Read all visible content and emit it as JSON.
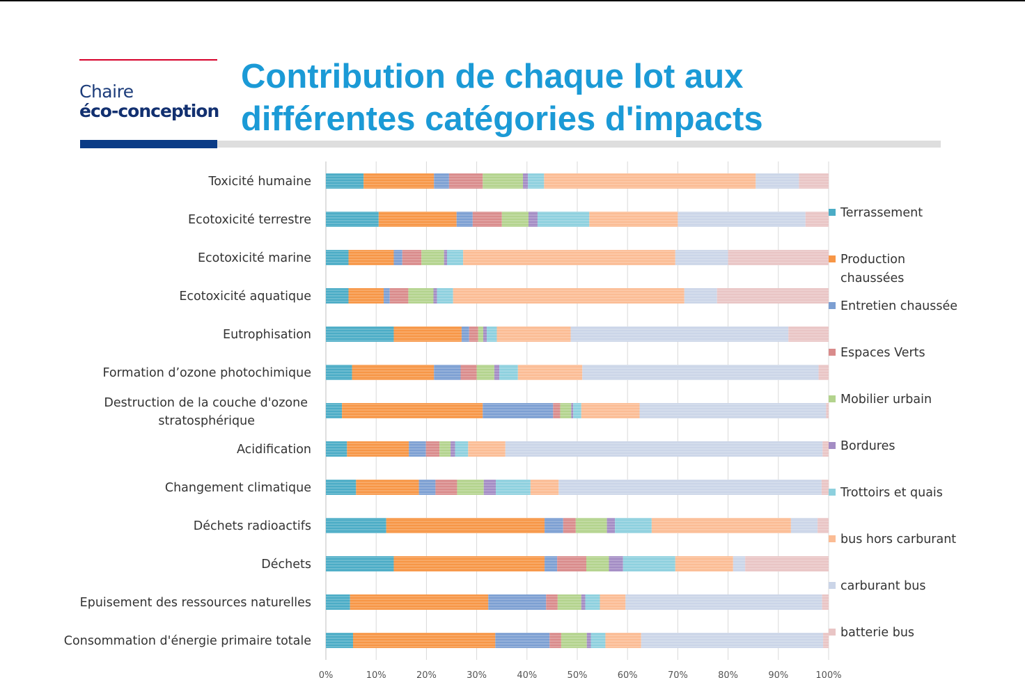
{
  "header": {
    "logo_line1": "Chaire",
    "logo_line2": "éco-conception",
    "title_line1": "Contribution de chaque lot aux",
    "title_line2": "différentes catégories d'impacts"
  },
  "chart_data": {
    "type": "bar",
    "orientation": "horizontal",
    "stacked": "percent",
    "xlim": [
      0,
      100
    ],
    "x_ticks": [
      "0%",
      "10%",
      "20%",
      "30%",
      "40%",
      "50%",
      "60%",
      "70%",
      "80%",
      "90%",
      "100%"
    ],
    "grid": true,
    "legend_position": "right",
    "categories": [
      "Toxicité humaine",
      "Ecotoxicité terrestre",
      "Ecotoxicité marine",
      "Ecotoxicité aquatique",
      "Eutrophisation",
      "Formation d’ozone photochimique",
      "Destruction de la couche d'ozone stratosphérique",
      "Acidification",
      "Changement climatique",
      "Déchets radioactifs",
      "Déchets",
      "Epuisement des ressources naturelles",
      "Consommation d'énergie primaire totale"
    ],
    "series": [
      {
        "name": "Terrassement",
        "color": "#4bacc6",
        "values": [
          7.5,
          10.5,
          4.5,
          4.5,
          13.5,
          5.2,
          3.2,
          4.2,
          6.0,
          12.0,
          13.5,
          4.8,
          5.4
        ]
      },
      {
        "name": "Production chaussées",
        "color": "#f79646",
        "values": [
          14.0,
          15.5,
          9.0,
          7.0,
          13.5,
          16.3,
          28.0,
          12.3,
          12.5,
          31.5,
          30.0,
          27.5,
          28.3
        ]
      },
      {
        "name": "Entretien chaussée",
        "color": "#7c9fd2",
        "values": [
          3.0,
          3.2,
          1.7,
          1.2,
          1.5,
          5.3,
          14.0,
          3.4,
          3.3,
          3.7,
          2.5,
          11.5,
          10.8
        ]
      },
      {
        "name": "Espaces Verts",
        "color": "#d98b8b",
        "values": [
          6.7,
          5.8,
          3.8,
          3.7,
          1.8,
          3.2,
          1.4,
          2.7,
          4.3,
          2.5,
          5.8,
          2.3,
          2.3
        ]
      },
      {
        "name": "Mobilier urbain",
        "color": "#b3d38d",
        "values": [
          8.0,
          5.3,
          4.5,
          5.0,
          1.0,
          3.5,
          2.2,
          2.2,
          5.3,
          6.2,
          4.5,
          4.7,
          5.1
        ]
      },
      {
        "name": "Bordures",
        "color": "#a38cc4",
        "values": [
          1.0,
          1.8,
          0.6,
          0.7,
          0.7,
          1.0,
          0.4,
          0.9,
          2.4,
          1.6,
          2.8,
          0.8,
          0.8
        ]
      },
      {
        "name": "Trottoirs et quais",
        "color": "#8dd0de",
        "values": [
          3.2,
          10.3,
          3.2,
          3.2,
          2.0,
          3.7,
          1.6,
          2.6,
          6.9,
          7.3,
          10.4,
          2.9,
          2.9
        ]
      },
      {
        "name": "bus hors carburant",
        "color": "#fbbc94",
        "values": [
          42.1,
          17.6,
          42.2,
          46.0,
          14.7,
          12.8,
          11.6,
          7.4,
          5.6,
          27.7,
          11.5,
          5.1,
          7.1
        ]
      },
      {
        "name": "carburant bus",
        "color": "#cbd5e8",
        "values": [
          8.6,
          25.4,
          10.5,
          6.5,
          43.3,
          47.0,
          37.1,
          63.1,
          52.3,
          5.3,
          2.4,
          39.1,
          36.2
        ]
      },
      {
        "name": "batterie bus",
        "color": "#e9c5c5",
        "values": [
          5.9,
          4.6,
          20.0,
          22.2,
          8.0,
          2.0,
          0.5,
          1.2,
          1.4,
          2.2,
          16.6,
          1.3,
          1.1
        ]
      }
    ]
  }
}
